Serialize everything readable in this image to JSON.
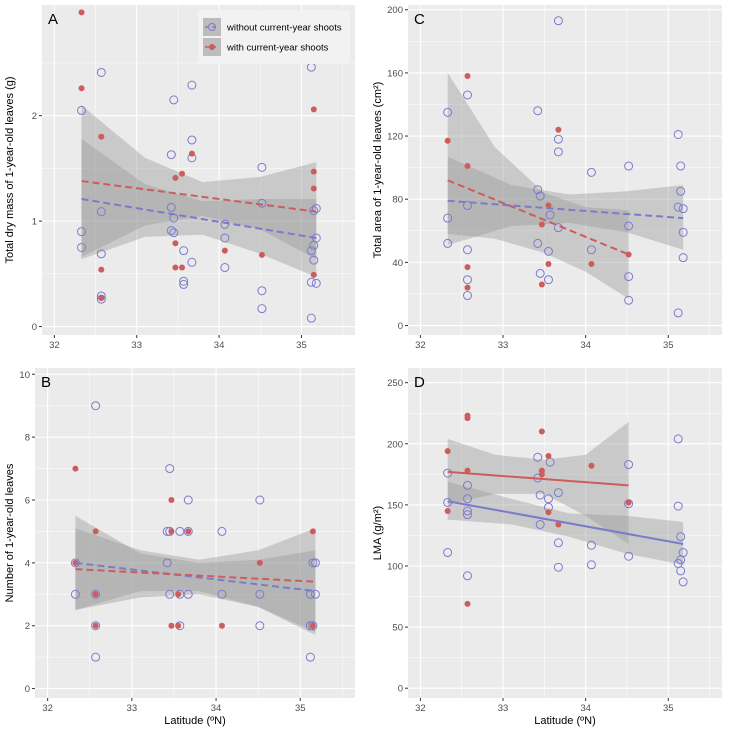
{
  "colors": {
    "without": "#7b7bcc",
    "with": "#cd5c5c",
    "panel": "#ebebeb",
    "grid": "#ffffff",
    "band": "#9a9a9a"
  },
  "legend": {
    "without_label": "without current-year shoots",
    "with_label": "with current-year shoots"
  },
  "chart_data": [
    {
      "panel": "A",
      "type": "scatter",
      "xlabel": "",
      "ylabel": "Total dry mass of 1-year-old leaves (g)",
      "xlim": [
        31.85,
        35.65
      ],
      "ylim": [
        -0.08,
        3.05
      ],
      "xticks": [
        32,
        33,
        34,
        35
      ],
      "yticks": [
        0,
        1,
        2
      ],
      "series": [
        {
          "name": "without current-year shoots",
          "x": [
            32.33,
            32.33,
            32.33,
            32.57,
            32.57,
            32.57,
            32.57,
            32.57,
            33.42,
            33.42,
            33.42,
            33.45,
            33.45,
            33.45,
            33.57,
            33.57,
            33.57,
            33.67,
            33.67,
            33.67,
            33.67,
            34.07,
            34.07,
            34.07,
            34.52,
            34.52,
            34.52,
            34.52,
            35.12,
            35.12,
            35.12,
            35.12,
            35.15,
            35.15,
            35.15,
            35.18,
            35.18,
            35.18
          ],
          "y": [
            2.05,
            0.9,
            0.75,
            2.41,
            1.09,
            0.69,
            0.29,
            0.26,
            1.63,
            1.13,
            0.91,
            2.15,
            1.03,
            0.89,
            0.72,
            0.43,
            0.4,
            2.29,
            1.77,
            1.6,
            0.61,
            0.97,
            0.84,
            0.56,
            1.51,
            1.17,
            0.34,
            0.17,
            2.46,
            0.72,
            0.42,
            0.08,
            1.1,
            0.77,
            0.63,
            1.12,
            0.84,
            0.41
          ]
        },
        {
          "name": "with current-year shoots",
          "x": [
            32.33,
            32.33,
            32.57,
            32.57,
            32.57,
            33.47,
            33.47,
            33.47,
            33.55,
            33.55,
            33.67,
            34.07,
            34.52,
            35.15,
            35.15,
            35.15,
            35.15
          ],
          "y": [
            2.98,
            2.26,
            1.8,
            0.54,
            0.27,
            1.41,
            0.79,
            0.56,
            1.45,
            0.56,
            1.64,
            0.72,
            0.68,
            2.06,
            1.47,
            1.31,
            0.49
          ]
        }
      ],
      "fits": [
        {
          "series": "without current-year shoots",
          "style": "dashed",
          "x": [
            32.33,
            35.18
          ],
          "y": [
            1.21,
            0.84
          ],
          "band_x": [
            32.33,
            33.1,
            33.8,
            34.5,
            35.18
          ],
          "band_lo": [
            0.64,
            0.85,
            0.87,
            0.69,
            0.47
          ],
          "band_hi": [
            1.78,
            1.35,
            1.19,
            1.21,
            1.21
          ]
        },
        {
          "series": "with current-year shoots",
          "style": "dashed",
          "x": [
            32.33,
            35.18
          ],
          "y": [
            1.38,
            1.09
          ],
          "band_x": [
            32.33,
            33.1,
            33.8,
            34.5,
            35.18
          ],
          "band_lo": [
            0.66,
            0.96,
            1.05,
            0.92,
            0.64
          ],
          "band_hi": [
            2.1,
            1.6,
            1.37,
            1.42,
            1.56
          ]
        }
      ]
    },
    {
      "panel": "C",
      "type": "scatter",
      "xlabel": "",
      "ylabel": "Total area of 1-year-old leaves (cm2)",
      "xlim": [
        31.85,
        35.65
      ],
      "ylim": [
        -6,
        203
      ],
      "xticks": [
        32,
        33,
        34,
        35
      ],
      "yticks": [
        0,
        40,
        80,
        120,
        160,
        200
      ],
      "series": [
        {
          "name": "without current-year shoots",
          "x": [
            32.33,
            32.33,
            32.33,
            32.57,
            32.57,
            32.57,
            32.57,
            32.57,
            33.42,
            33.42,
            33.42,
            33.45,
            33.45,
            33.55,
            33.55,
            33.57,
            33.67,
            33.67,
            33.67,
            33.67,
            34.07,
            34.07,
            34.52,
            34.52,
            34.52,
            34.52,
            35.12,
            35.12,
            35.12,
            35.15,
            35.15,
            35.18,
            35.18,
            35.18
          ],
          "y": [
            135,
            68,
            52,
            146,
            76,
            48,
            29,
            19,
            136,
            86,
            52,
            82,
            33,
            47,
            29,
            70,
            193,
            118,
            110,
            62,
            97,
            48,
            101,
            63,
            31,
            16,
            121,
            75,
            8,
            101,
            85,
            74,
            59,
            43
          ],
          "note": "approximate readings"
        },
        {
          "name": "with current-year shoots",
          "x": [
            32.33,
            32.57,
            32.57,
            32.57,
            32.57,
            33.47,
            33.47,
            33.55,
            33.55,
            33.67,
            34.07,
            34.52
          ],
          "y": [
            117,
            158,
            101,
            37,
            24,
            64,
            26,
            76,
            39,
            124,
            39,
            45
          ]
        }
      ],
      "fits": [
        {
          "series": "without current-year shoots",
          "style": "dashed",
          "x": [
            32.33,
            35.18
          ],
          "y": [
            79,
            68
          ],
          "band_x": [
            32.33,
            33.1,
            33.8,
            34.5,
            35.18
          ],
          "band_lo": [
            51,
            63,
            65,
            59,
            48
          ],
          "band_hi": [
            107,
            89,
            83,
            85,
            89
          ]
        },
        {
          "series": "with current-year shoots",
          "style": "dashed",
          "x": [
            32.33,
            34.52
          ],
          "y": [
            92,
            45
          ],
          "band_x": [
            32.33,
            32.9,
            33.5,
            34.0,
            34.52
          ],
          "band_lo": [
            58,
            55,
            46,
            34,
            17
          ],
          "band_hi": [
            160,
            113,
            84,
            75,
            73
          ]
        }
      ]
    },
    {
      "panel": "B",
      "type": "scatter",
      "xlabel": "Latitude (ºN)",
      "ylabel": "Number of 1-year-old leaves",
      "xlim": [
        31.85,
        35.65
      ],
      "ylim": [
        -0.3,
        10.2
      ],
      "xticks": [
        32,
        33,
        34,
        35
      ],
      "yticks": [
        0,
        2,
        4,
        6,
        8,
        10
      ],
      "series": [
        {
          "name": "without current-year shoots",
          "x": [
            32.33,
            32.33,
            32.57,
            32.57,
            32.57,
            32.57,
            33.42,
            33.42,
            33.45,
            33.45,
            33.45,
            33.57,
            33.57,
            33.57,
            33.67,
            33.67,
            33.67,
            34.07,
            34.07,
            34.52,
            34.52,
            34.52,
            35.12,
            35.12,
            35.12,
            35.15,
            35.15,
            35.18,
            35.18
          ],
          "y": [
            4,
            3,
            9,
            3,
            2,
            1,
            5,
            4,
            7,
            3,
            5,
            5,
            3,
            2,
            6,
            5,
            3,
            5,
            3,
            6,
            3,
            2,
            3,
            2,
            1,
            4,
            2,
            4,
            3
          ]
        },
        {
          "name": "with current-year shoots",
          "x": [
            32.33,
            32.33,
            32.57,
            32.57,
            32.57,
            33.47,
            33.47,
            33.47,
            33.55,
            33.55,
            33.67,
            34.07,
            34.52,
            35.15,
            35.15
          ],
          "y": [
            7,
            4,
            5,
            3,
            2,
            6,
            5,
            2,
            3,
            2,
            5,
            2,
            4,
            5,
            2
          ]
        }
      ],
      "fits": [
        {
          "series": "without current-year shoots",
          "style": "dashed",
          "x": [
            32.33,
            35.18
          ],
          "y": [
            4.0,
            3.1
          ],
          "band_x": [
            32.33,
            33.1,
            33.8,
            34.5,
            35.18
          ],
          "band_lo": [
            2.5,
            3.1,
            3.1,
            2.6,
            1.8
          ],
          "band_hi": [
            5.5,
            4.3,
            4.0,
            4.1,
            4.4
          ]
        },
        {
          "series": "with current-year shoots",
          "style": "dashed",
          "x": [
            32.33,
            35.18
          ],
          "y": [
            3.8,
            3.4
          ],
          "band_x": [
            32.33,
            33.1,
            33.8,
            34.5,
            35.18
          ],
          "band_lo": [
            2.5,
            2.9,
            3.0,
            2.6,
            1.7
          ],
          "band_hi": [
            5.1,
            4.4,
            4.1,
            4.4,
            5.1
          ]
        }
      ]
    },
    {
      "panel": "D",
      "type": "scatter",
      "xlabel": "Latitude (ºN)",
      "ylabel": "LMA (g/m2)",
      "xlim": [
        31.85,
        35.65
      ],
      "ylim": [
        -8,
        262
      ],
      "xticks": [
        32,
        33,
        34,
        35
      ],
      "yticks": [
        0,
        50,
        100,
        150,
        200,
        250
      ],
      "series": [
        {
          "name": "without current-year shoots",
          "x": [
            32.33,
            32.33,
            32.33,
            32.57,
            32.57,
            32.57,
            32.57,
            32.57,
            33.42,
            33.42,
            33.45,
            33.45,
            33.55,
            33.55,
            33.57,
            33.67,
            33.67,
            33.67,
            34.07,
            34.07,
            34.52,
            34.52,
            34.52,
            35.12,
            35.12,
            35.12,
            35.15,
            35.15,
            35.15,
            35.18,
            35.18
          ],
          "y": [
            176,
            152,
            111,
            166,
            155,
            145,
            142,
            92,
            189,
            172,
            158,
            134,
            155,
            148,
            185,
            160,
            119,
            99,
            117,
            101,
            183,
            151,
            108,
            204,
            149,
            102,
            124,
            105,
            96,
            111,
            87
          ]
        },
        {
          "name": "with current-year shoots",
          "x": [
            32.33,
            32.33,
            32.57,
            32.57,
            32.57,
            32.57,
            33.47,
            33.47,
            33.47,
            33.55,
            33.55,
            33.67,
            34.07,
            34.52
          ],
          "y": [
            194,
            145,
            223,
            221,
            178,
            69,
            210,
            178,
            175,
            190,
            144,
            134,
            182,
            152
          ]
        }
      ],
      "fits": [
        {
          "series": "without current-year shoots",
          "style": "solid",
          "x": [
            32.33,
            35.18
          ],
          "y": [
            153,
            118
          ],
          "band_x": [
            32.33,
            33.1,
            33.8,
            34.5,
            35.18
          ],
          "band_lo": [
            138,
            134,
            124,
            110,
            101
          ],
          "band_hi": [
            169,
            155,
            143,
            141,
            136
          ]
        },
        {
          "series": "with current-year shoots",
          "style": "solid",
          "x": [
            32.33,
            34.52
          ],
          "y": [
            177,
            166
          ],
          "band_x": [
            32.33,
            32.9,
            33.5,
            34.0,
            34.52
          ],
          "band_lo": [
            150,
            159,
            159,
            141,
            118
          ],
          "band_hi": [
            204,
            191,
            187,
            191,
            218
          ]
        }
      ]
    }
  ],
  "note": "Axis superscripts rendered as cm² and g/m²"
}
